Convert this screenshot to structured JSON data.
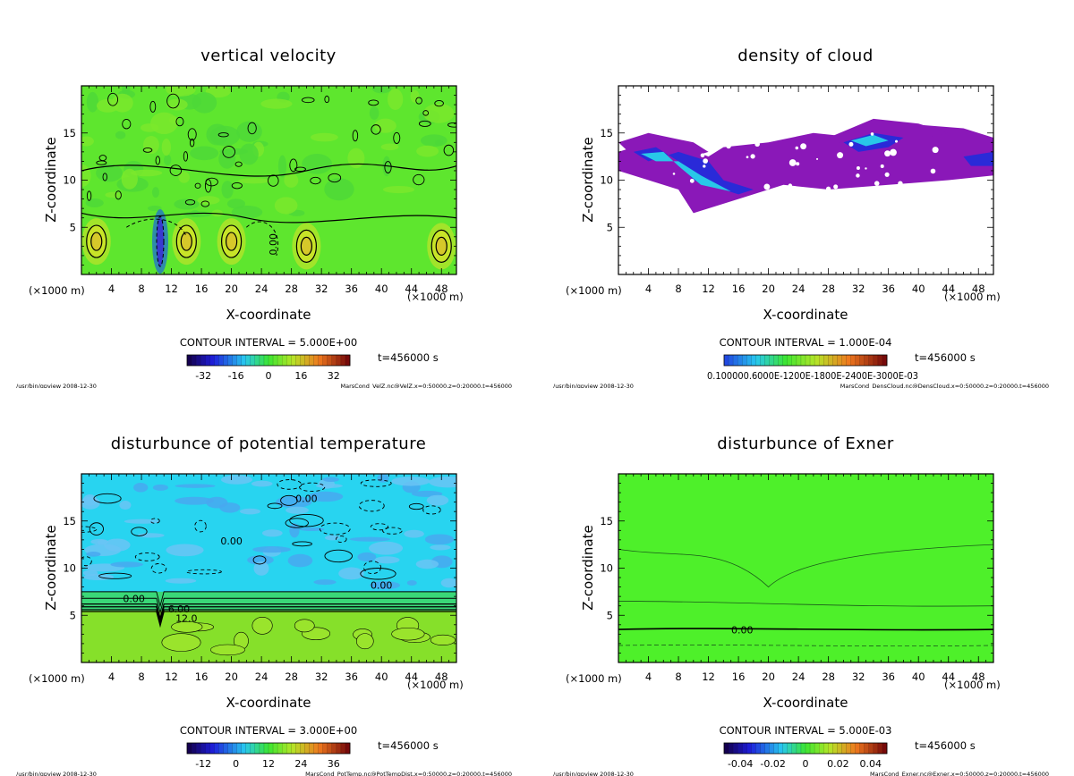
{
  "footer_left": "/usr/bin/gpview  2008-12-30",
  "chart_data": [
    {
      "type": "heatmap",
      "title": "vertical velocity",
      "xlabel": "X-coordinate",
      "ylabel": "Z-coordinate",
      "x_unit": "(×1000 m)",
      "x_unit_left": "(×1000 m)",
      "xlim": [
        0,
        50
      ],
      "ylim": [
        0,
        20
      ],
      "xticks": [
        "4",
        "8",
        "12",
        "16",
        "20",
        "24",
        "28",
        "32",
        "36",
        "40",
        "44",
        "48"
      ],
      "yticks": [
        "5",
        "10",
        "15"
      ],
      "contour_interval": "CONTOUR INTERVAL = 5.000E+00",
      "time": "t=456000 s",
      "colorbar_ticks": [
        "-32",
        "-16",
        "0",
        "16",
        "32"
      ],
      "colorbar_range": [
        -40,
        40
      ],
      "contour_labels": [
        "0.00"
      ],
      "footer_right": "MarsCond_VelZ.nc@VelZ,x=0:50000,z=0:20000,t=456000",
      "colors": {
        "base": "#5ee62e",
        "positive": "#b6e628",
        "negative": "#1fa84e"
      }
    },
    {
      "type": "heatmap",
      "title": "density of cloud",
      "xlabel": "X-coordinate",
      "ylabel": "Z-coordinate",
      "x_unit": "(×1000 m)",
      "x_unit_left": "(×1000 m)",
      "xlim": [
        0,
        50
      ],
      "ylim": [
        0,
        20
      ],
      "xticks": [
        "4",
        "8",
        "12",
        "16",
        "20",
        "24",
        "28",
        "32",
        "36",
        "40",
        "44",
        "48"
      ],
      "yticks": [
        "5",
        "10",
        "15"
      ],
      "contour_interval": "CONTOUR INTERVAL = 1.000E-04",
      "time": "t=456000 s",
      "colorbar_ticks": [
        "0.100000.6000E-1200E-1800E-2400E-3000E-03"
      ],
      "footer_right": "MarsCond_DensCloud.nc@DensCloud,x=0:50000,z=0:20000,t=456000",
      "colors": {
        "base": "#8a18b8",
        "mid": "#2a2ad8",
        "high": "#28c8e8"
      }
    },
    {
      "type": "heatmap",
      "title": "disturbunce of potential temperature",
      "xlabel": "X-coordinate",
      "ylabel": "Z-coordinate",
      "x_unit": "(×1000 m)",
      "x_unit_left": "(×1000 m)",
      "xlim": [
        0,
        50
      ],
      "ylim": [
        0,
        20
      ],
      "xticks": [
        "4",
        "8",
        "12",
        "16",
        "20",
        "24",
        "28",
        "32",
        "36",
        "40",
        "44",
        "48"
      ],
      "yticks": [
        "5",
        "10",
        "15"
      ],
      "contour_interval": "CONTOUR INTERVAL = 3.000E+00",
      "time": "t=456000 s",
      "colorbar_ticks": [
        "-12",
        "0",
        "12",
        "24",
        "36"
      ],
      "colorbar_range": [
        -18,
        42
      ],
      "contour_labels": [
        "0.00",
        "0.00",
        "0.00",
        "0.00",
        "6.00",
        "12.0"
      ],
      "footer_right": "MarsCond_PotTemp.nc@PotTempDist,x=0:50000,z=0:20000,t=456000",
      "colors": {
        "upper": "#28d4f0",
        "upper_alt": "#48a8f0",
        "lower": "#86e02a",
        "band": "#3ad878"
      }
    },
    {
      "type": "heatmap",
      "title": "disturbunce of Exner",
      "xlabel": "X-coordinate",
      "ylabel": "Z-coordinate",
      "x_unit": "(×1000 m)",
      "x_unit_left": "(×1000 m)",
      "xlim": [
        0,
        50
      ],
      "ylim": [
        0,
        20
      ],
      "xticks": [
        "4",
        "8",
        "12",
        "16",
        "20",
        "24",
        "28",
        "32",
        "36",
        "40",
        "44",
        "48"
      ],
      "yticks": [
        "5",
        "10",
        "15"
      ],
      "contour_interval": "CONTOUR INTERVAL = 5.000E-03",
      "time": "t=456000 s",
      "colorbar_ticks": [
        "-0.04",
        "-0.02",
        "0",
        "0.02",
        "0.04"
      ],
      "colorbar_range": [
        -0.05,
        0.05
      ],
      "contour_labels": [
        "0.00"
      ],
      "footer_right": "MarsCond_Exner.nc@Exner,x=0:50000,z=0:20000,t=456000",
      "colors": {
        "base": "#4ef02a",
        "lower": "#3ee030"
      }
    }
  ]
}
